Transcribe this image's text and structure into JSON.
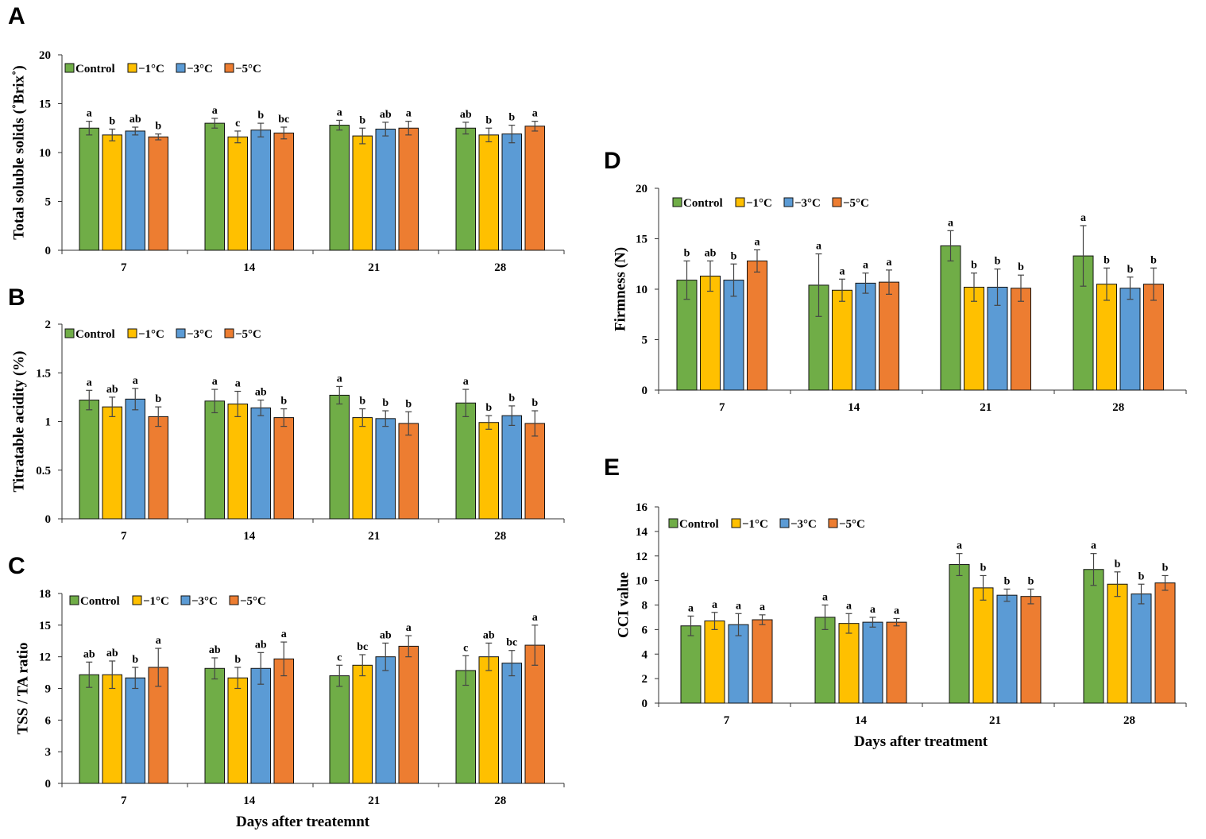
{
  "legend_labels": [
    "Control",
    "−1°C",
    "−3°C",
    "−5°C"
  ],
  "colors": {
    "Control": "#70ad47",
    "m1": "#ffc000",
    "m3": "#5b9bd5",
    "m5": "#ed7d31"
  },
  "chart_data": [
    {
      "panel": "A",
      "type": "bar",
      "ylabel": "Total soluble solids (˚Brix˚)",
      "xlabel": "",
      "categories": [
        "7",
        "14",
        "21",
        "28"
      ],
      "ylim": [
        0,
        20
      ],
      "yticks": [
        "0",
        "5",
        "10",
        "15",
        "20"
      ],
      "series": [
        {
          "name": "Control",
          "values": [
            12.5,
            13.0,
            12.8,
            12.5
          ],
          "errors": [
            0.7,
            0.5,
            0.5,
            0.6
          ],
          "letters": [
            "a",
            "a",
            "a",
            "ab"
          ]
        },
        {
          "name": "−1°C",
          "values": [
            11.8,
            11.6,
            11.7,
            11.8
          ],
          "errors": [
            0.6,
            0.6,
            0.8,
            0.7
          ],
          "letters": [
            "b",
            "c",
            "b",
            "b"
          ]
        },
        {
          "name": "−3°C",
          "values": [
            12.2,
            12.3,
            12.4,
            11.9
          ],
          "errors": [
            0.4,
            0.7,
            0.7,
            0.9
          ],
          "letters": [
            "ab",
            "b",
            "ab",
            "b"
          ]
        },
        {
          "name": "−5°C",
          "values": [
            11.6,
            12.0,
            12.5,
            12.7
          ],
          "errors": [
            0.3,
            0.6,
            0.7,
            0.5
          ],
          "letters": [
            "b",
            "bc",
            "a",
            "a"
          ]
        }
      ]
    },
    {
      "panel": "B",
      "type": "bar",
      "ylabel": "Titratable acidity (%)",
      "xlabel": "",
      "categories": [
        "7",
        "14",
        "21",
        "28"
      ],
      "ylim": [
        0,
        2
      ],
      "yticks": [
        "0",
        "0.5",
        "1",
        "1.5",
        "2"
      ],
      "series": [
        {
          "name": "Control",
          "values": [
            1.22,
            1.21,
            1.27,
            1.19
          ],
          "errors": [
            0.1,
            0.12,
            0.09,
            0.14
          ],
          "letters": [
            "a",
            "a",
            "a",
            "a"
          ]
        },
        {
          "name": "−1°C",
          "values": [
            1.15,
            1.18,
            1.04,
            0.99
          ],
          "errors": [
            0.1,
            0.13,
            0.09,
            0.07
          ],
          "letters": [
            "ab",
            "a",
            "b",
            "b"
          ]
        },
        {
          "name": "−3°C",
          "values": [
            1.23,
            1.14,
            1.03,
            1.06
          ],
          "errors": [
            0.11,
            0.08,
            0.08,
            0.1
          ],
          "letters": [
            "a",
            "ab",
            "b",
            "b"
          ]
        },
        {
          "name": "−5°C",
          "values": [
            1.05,
            1.04,
            0.98,
            0.98
          ],
          "errors": [
            0.1,
            0.09,
            0.12,
            0.13
          ],
          "letters": [
            "b",
            "b",
            "b",
            "b"
          ]
        }
      ]
    },
    {
      "panel": "C",
      "type": "bar",
      "ylabel": "TSS / TA ratio",
      "xlabel": "Days after treatemnt",
      "categories": [
        "7",
        "14",
        "21",
        "28"
      ],
      "ylim": [
        0,
        18
      ],
      "yticks": [
        "0",
        "3",
        "6",
        "9",
        "12",
        "15",
        "18"
      ],
      "series": [
        {
          "name": "Control",
          "values": [
            10.3,
            10.9,
            10.2,
            10.7
          ],
          "errors": [
            1.2,
            1.0,
            1.0,
            1.4
          ],
          "letters": [
            "ab",
            "ab",
            "c",
            "c"
          ]
        },
        {
          "name": "−1°C",
          "values": [
            10.3,
            10.0,
            11.2,
            12.0
          ],
          "errors": [
            1.3,
            1.0,
            1.0,
            1.3
          ],
          "letters": [
            "ab",
            "b",
            "bc",
            "ab"
          ]
        },
        {
          "name": "−3°C",
          "values": [
            10.0,
            10.9,
            12.0,
            11.4
          ],
          "errors": [
            1.0,
            1.5,
            1.3,
            1.2
          ],
          "letters": [
            "b",
            "ab",
            "ab",
            "bc"
          ]
        },
        {
          "name": "−5°C",
          "values": [
            11.0,
            11.8,
            13.0,
            13.1
          ],
          "errors": [
            1.8,
            1.6,
            1.0,
            1.9
          ],
          "letters": [
            "a",
            "a",
            "a",
            "a"
          ]
        }
      ]
    },
    {
      "panel": "D",
      "type": "bar",
      "ylabel": "Firmness (N)",
      "xlabel": "",
      "categories": [
        "7",
        "14",
        "21",
        "28"
      ],
      "ylim": [
        0,
        20
      ],
      "yticks": [
        "0",
        "5",
        "10",
        "15",
        "20"
      ],
      "series": [
        {
          "name": "Control",
          "values": [
            10.9,
            10.4,
            14.3,
            13.3
          ],
          "errors": [
            1.9,
            3.1,
            1.5,
            3.0
          ],
          "letters": [
            "b",
            "a",
            "a",
            "a"
          ]
        },
        {
          "name": "−1°C",
          "values": [
            11.3,
            9.9,
            10.2,
            10.5
          ],
          "errors": [
            1.5,
            1.1,
            1.4,
            1.6
          ],
          "letters": [
            "ab",
            "a",
            "b",
            "b"
          ]
        },
        {
          "name": "−3°C",
          "values": [
            10.9,
            10.6,
            10.2,
            10.1
          ],
          "errors": [
            1.6,
            1.0,
            1.8,
            1.1
          ],
          "letters": [
            "b",
            "a",
            "b",
            "b"
          ]
        },
        {
          "name": "−5°C",
          "values": [
            12.8,
            10.7,
            10.1,
            10.5
          ],
          "errors": [
            1.1,
            1.2,
            1.3,
            1.6
          ],
          "letters": [
            "a",
            "a",
            "b",
            "b"
          ]
        }
      ]
    },
    {
      "panel": "E",
      "type": "bar",
      "ylabel": "CCI value",
      "xlabel": "Days after treatment",
      "categories": [
        "7",
        "14",
        "21",
        "28"
      ],
      "ylim": [
        0,
        16
      ],
      "yticks": [
        "0",
        "2",
        "4",
        "6",
        "8",
        "10",
        "12",
        "14",
        "16"
      ],
      "series": [
        {
          "name": "Control",
          "values": [
            6.3,
            7.0,
            11.3,
            10.9
          ],
          "errors": [
            0.8,
            1.0,
            0.9,
            1.3
          ],
          "letters": [
            "a",
            "a",
            "a",
            "a"
          ]
        },
        {
          "name": "−1°C",
          "values": [
            6.7,
            6.5,
            9.4,
            9.7
          ],
          "errors": [
            0.7,
            0.8,
            1.0,
            1.0
          ],
          "letters": [
            "a",
            "a",
            "b",
            "b"
          ]
        },
        {
          "name": "−3°C",
          "values": [
            6.4,
            6.6,
            8.8,
            8.9
          ],
          "errors": [
            0.9,
            0.4,
            0.5,
            0.8
          ],
          "letters": [
            "a",
            "a",
            "b",
            "b"
          ]
        },
        {
          "name": "−5°C",
          "values": [
            6.8,
            6.6,
            8.7,
            9.8
          ],
          "errors": [
            0.4,
            0.3,
            0.6,
            0.6
          ],
          "letters": [
            "a",
            "a",
            "b",
            "b"
          ]
        }
      ]
    }
  ]
}
